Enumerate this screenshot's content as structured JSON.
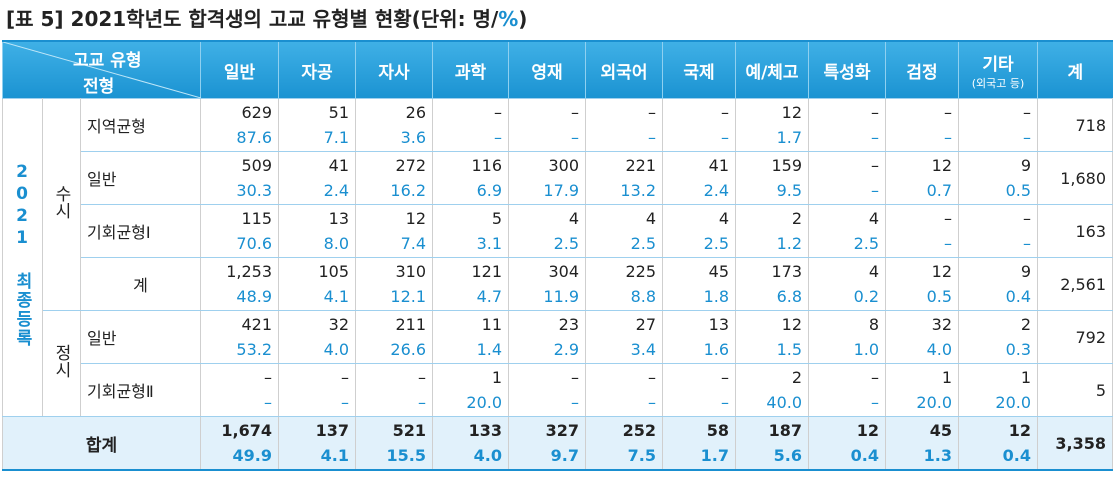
{
  "title": {
    "main": "[표 5] 2021학년도 합격생의 고교 유형별 현황(단위: 명/",
    "unit": "%",
    "close": ")"
  },
  "header": {
    "corner_top": "고교 유형",
    "corner_bottom": "전형",
    "columns": [
      "일반",
      "자공",
      "자사",
      "과학",
      "영재",
      "외국어",
      "국제",
      "예/체고",
      "특성화",
      "검정",
      "기타"
    ],
    "other_note": "(외국고 등)",
    "total": "계"
  },
  "side_label": "2021 최종등록",
  "groups": [
    {
      "label": "수시",
      "rows": [
        {
          "label": "지역균형",
          "counts": [
            "629",
            "51",
            "26",
            "–",
            "–",
            "–",
            "–",
            "12",
            "–",
            "–",
            "–"
          ],
          "percents": [
            "87.6",
            "7.1",
            "3.6",
            "–",
            "–",
            "–",
            "–",
            "1.7",
            "–",
            "–",
            "–"
          ],
          "total": "718"
        },
        {
          "label": "일반",
          "counts": [
            "509",
            "41",
            "272",
            "116",
            "300",
            "221",
            "41",
            "159",
            "–",
            "12",
            "9"
          ],
          "percents": [
            "30.3",
            "2.4",
            "16.2",
            "6.9",
            "17.9",
            "13.2",
            "2.4",
            "9.5",
            "–",
            "0.7",
            "0.5"
          ],
          "total": "1,680"
        },
        {
          "label": "기회균형Ⅰ",
          "counts": [
            "115",
            "13",
            "12",
            "5",
            "4",
            "4",
            "4",
            "2",
            "4",
            "–",
            "–"
          ],
          "percents": [
            "70.6",
            "8.0",
            "7.4",
            "3.1",
            "2.5",
            "2.5",
            "2.5",
            "1.2",
            "2.5",
            "–",
            "–"
          ],
          "total": "163"
        },
        {
          "label": "계",
          "counts": [
            "1,253",
            "105",
            "310",
            "121",
            "304",
            "225",
            "45",
            "173",
            "4",
            "12",
            "9"
          ],
          "percents": [
            "48.9",
            "4.1",
            "12.1",
            "4.7",
            "11.9",
            "8.8",
            "1.8",
            "6.8",
            "0.2",
            "0.5",
            "0.4"
          ],
          "total": "2,561"
        }
      ]
    },
    {
      "label": "정시",
      "rows": [
        {
          "label": "일반",
          "counts": [
            "421",
            "32",
            "211",
            "11",
            "23",
            "27",
            "13",
            "12",
            "8",
            "32",
            "2"
          ],
          "percents": [
            "53.2",
            "4.0",
            "26.6",
            "1.4",
            "2.9",
            "3.4",
            "1.6",
            "1.5",
            "1.0",
            "4.0",
            "0.3"
          ],
          "total": "792"
        },
        {
          "label": "기회균형Ⅱ",
          "counts": [
            "–",
            "–",
            "–",
            "1",
            "–",
            "–",
            "–",
            "2",
            "–",
            "1",
            "1"
          ],
          "percents": [
            "–",
            "–",
            "–",
            "20.0",
            "–",
            "–",
            "–",
            "40.0",
            "–",
            "20.0",
            "20.0"
          ],
          "total": "5"
        }
      ]
    }
  ],
  "grand_total": {
    "label": "합계",
    "counts": [
      "1,674",
      "137",
      "521",
      "133",
      "327",
      "252",
      "58",
      "187",
      "12",
      "45",
      "12"
    ],
    "percents": [
      "49.9",
      "4.1",
      "15.5",
      "4.0",
      "9.7",
      "7.5",
      "1.7",
      "5.6",
      "0.4",
      "1.3",
      "0.4"
    ],
    "total": "3,358"
  }
}
